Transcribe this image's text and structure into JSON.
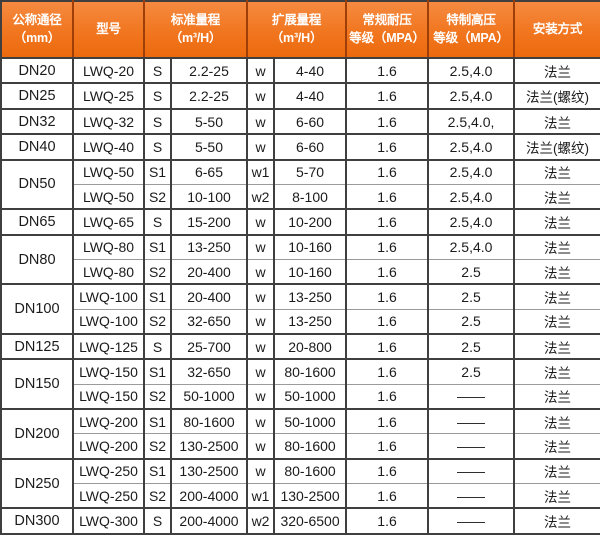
{
  "colors": {
    "header_orange_top": "#f58a41",
    "header_orange_bottom": "#ec6a0e",
    "header_separator": "#9e3e08",
    "header_text": "#ffffff",
    "border_dark": "#3f3f3f",
    "border_light": "#9b9b9b",
    "body_text": "#1b1b1b",
    "body_background": "#ffffff"
  },
  "header": {
    "cols": [
      {
        "lines": [
          "公称通径",
          "（mm）"
        ],
        "span": 1
      },
      {
        "lines": [
          "型号"
        ],
        "span": 1
      },
      {
        "lines": [
          "标准量程",
          "（m³/H）"
        ],
        "span": 2
      },
      {
        "lines": [
          "扩展量程",
          "（m³/H）"
        ],
        "span": 2
      },
      {
        "lines": [
          "常规耐压",
          "等级（MPA）"
        ],
        "span": 1
      },
      {
        "lines": [
          "特制高压",
          "等级（MPA）"
        ],
        "span": 1
      },
      {
        "lines": [
          "安装方式"
        ],
        "span": 1
      }
    ]
  },
  "chart_data": {
    "type": "table",
    "columns": [
      "公称通径（mm）",
      "型号",
      "标准量程（m³/H）",
      "扩展量程（m³/H）",
      "常规耐压等级（MPA）",
      "特制高压等级（MPA）",
      "安装方式"
    ],
    "groups": [
      {
        "dn": "DN20",
        "rows": [
          [
            "LWQ-20",
            "S",
            "2.2-25",
            "w",
            "4-40",
            "1.6",
            "2.5,4.0",
            "法兰"
          ],
          null
        ]
      },
      {
        "dn": "DN25",
        "rows": [
          [
            "LWQ-25",
            "S",
            "2.2-25",
            "w",
            "4-40",
            "1.6",
            "2.5,4.0",
            "法兰(螺纹)"
          ]
        ]
      },
      {
        "dn": "DN32",
        "rows": [
          [
            "LWQ-32",
            "S",
            "5-50",
            "w",
            "6-60",
            "1.6",
            "2.5,4.0,",
            "法兰"
          ]
        ]
      },
      {
        "dn": "DN40",
        "rows": [
          [
            "LWQ-40",
            "S",
            "5-50",
            "w",
            "6-60",
            "1.6",
            "2.5,4.0",
            "法兰(螺纹)"
          ]
        ]
      },
      {
        "dn": "DN50",
        "rows": [
          [
            "LWQ-50",
            "S1",
            "6-65",
            "w1",
            "5-70",
            "1.6",
            "2.5,4.0",
            "法兰"
          ],
          [
            "LWQ-50",
            "S2",
            "10-100",
            "w2",
            "8-100",
            "1.6",
            "2.5,4.0",
            "法兰"
          ]
        ]
      },
      {
        "dn": "DN65",
        "rows": [
          [
            "LWQ-65",
            "S",
            "15-200",
            "w",
            "10-200",
            "1.6",
            "2.5,4.0",
            "法兰"
          ]
        ]
      },
      {
        "dn": "DN80",
        "rows": [
          [
            "LWQ-80",
            "S1",
            "13-250",
            "w",
            "10-160",
            "1.6",
            "2.5,4.0",
            "法兰"
          ],
          [
            "LWQ-80",
            "S2",
            "20-400",
            "w",
            "10-160",
            "1.6",
            "2.5",
            "法兰"
          ]
        ]
      },
      {
        "dn": "DN100",
        "rows": [
          [
            "LWQ-100",
            "S1",
            "20-400",
            "w",
            "13-250",
            "1.6",
            "2.5",
            "法兰"
          ],
          [
            "LWQ-100",
            "S2",
            "32-650",
            "w",
            "13-250",
            "1.6",
            "2.5",
            "法兰"
          ]
        ]
      },
      {
        "dn": "DN125",
        "rows": [
          [
            "LWQ-125",
            "S",
            "25-700",
            "w",
            "20-800",
            "1.6",
            "2.5",
            "法兰"
          ]
        ]
      },
      {
        "dn": "DN150",
        "rows": [
          [
            "LWQ-150",
            "S1",
            "32-650",
            "w",
            "80-1600",
            "1.6",
            "2.5",
            "法兰"
          ],
          [
            "LWQ-150",
            "S2",
            "50-1000",
            "w",
            "50-1000",
            "1.6",
            "——",
            "法兰"
          ]
        ]
      },
      {
        "dn": "DN200",
        "rows": [
          [
            "LWQ-200",
            "S1",
            "80-1600",
            "w",
            "50-1000",
            "1.6",
            "——",
            "法兰"
          ],
          [
            "LWQ-200",
            "S2",
            "130-2500",
            "w",
            "80-1600",
            "1.6",
            "——",
            "法兰"
          ]
        ]
      },
      {
        "dn": "DN250",
        "rows": [
          [
            "LWQ-250",
            "S1",
            "130-2500",
            "w",
            "80-1600",
            "1.6",
            "——",
            "法兰"
          ],
          [
            "LWQ-250",
            "S2",
            "200-4000",
            "w1",
            "130-2500",
            "1.6",
            "——",
            "法兰"
          ]
        ]
      },
      {
        "dn": "DN300",
        "rows": [
          [
            "LWQ-300",
            "S",
            "200-4000",
            "w2",
            "320-6500",
            "1.6",
            "——",
            "法兰"
          ]
        ]
      }
    ]
  }
}
